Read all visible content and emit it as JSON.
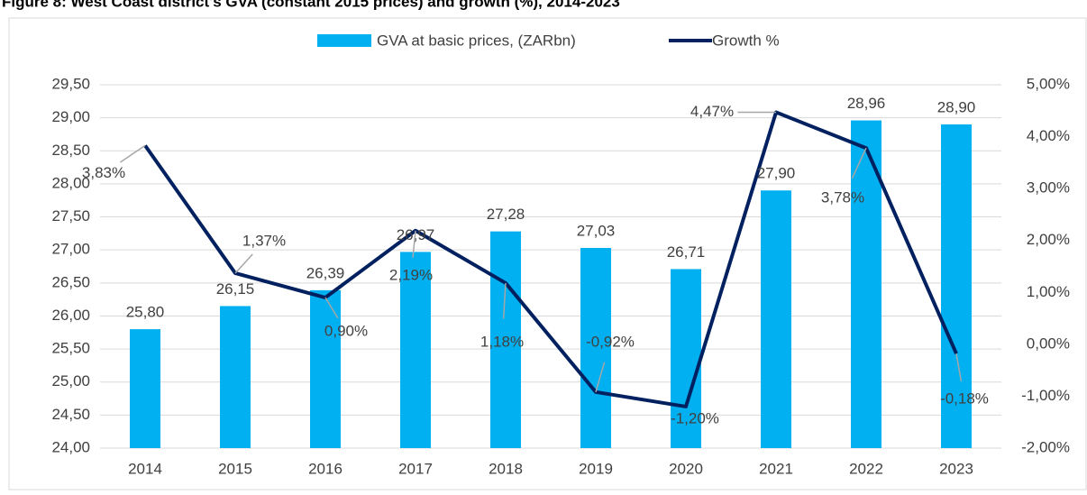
{
  "chart_data": {
    "type": "bar_line",
    "title": "Figure 8: West Coast district's GVA (constant 2015 prices) and growth (%), 2014-2023",
    "categories": [
      "2014",
      "2015",
      "2016",
      "2017",
      "2018",
      "2019",
      "2020",
      "2021",
      "2022",
      "2023"
    ],
    "series": [
      {
        "name": "GVA at basic prices, (ZARbn)",
        "color": "#00b0f0",
        "type": "bar",
        "values": [
          25.8,
          26.15,
          26.39,
          26.97,
          27.28,
          27.03,
          26.71,
          27.9,
          28.96,
          28.9
        ],
        "value_labels": [
          "25,80",
          "26,15",
          "26,39",
          "26,97",
          "27,28",
          "27,03",
          "26,71",
          "27,90",
          "28,96",
          "28,90"
        ]
      },
      {
        "name": "Growth %",
        "color": "#002060",
        "type": "line",
        "axis": "y2",
        "values": [
          3.83,
          1.37,
          0.9,
          2.19,
          1.18,
          -0.92,
          -1.2,
          4.47,
          3.78,
          -0.18
        ],
        "value_labels": [
          "3,83%",
          "1,37%",
          "0,90%",
          "2,19%",
          "1,18%",
          "-0,92%",
          "-1,20%",
          "4,47%",
          "3,78%",
          "-0,18%"
        ]
      }
    ],
    "ylim": [
      24,
      29.5
    ],
    "yticks": [
      {
        "value": 24,
        "label": "24,00"
      },
      {
        "value": 24.5,
        "label": "24,50"
      },
      {
        "value": 25,
        "label": "25,00"
      },
      {
        "value": 25.5,
        "label": "25,50"
      },
      {
        "value": 26,
        "label": "26,00"
      },
      {
        "value": 26.5,
        "label": "26,50"
      },
      {
        "value": 27,
        "label": "27,00"
      },
      {
        "value": 27.5,
        "label": "27,50"
      },
      {
        "value": 28,
        "label": "28,00"
      },
      {
        "value": 28.5,
        "label": "28,50"
      },
      {
        "value": 29,
        "label": "29,00"
      },
      {
        "value": 29.5,
        "label": "29,50"
      }
    ],
    "y2lim": [
      -2,
      5
    ],
    "y2ticks": [
      {
        "value": -2,
        "label": "-2,00%"
      },
      {
        "value": -1,
        "label": "-1,00%"
      },
      {
        "value": 0,
        "label": "0,00%"
      },
      {
        "value": 1,
        "label": "1,00%"
      },
      {
        "value": 2,
        "label": "2,00%"
      },
      {
        "value": 3,
        "label": "3,00%"
      },
      {
        "value": 4,
        "label": "4,00%"
      },
      {
        "value": 5,
        "label": "5,00%"
      }
    ],
    "grid": true,
    "legend": "top"
  }
}
